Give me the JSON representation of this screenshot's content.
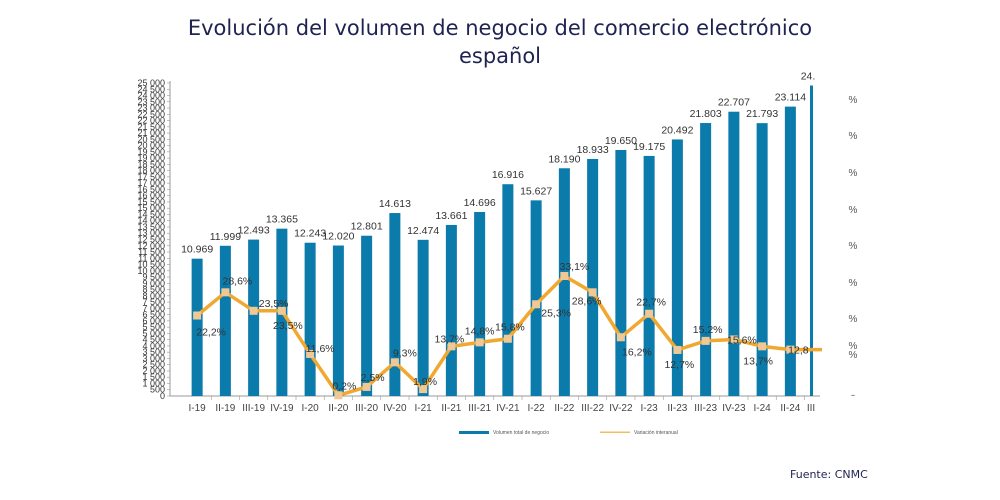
{
  "page": {
    "title_line1": "Evolución del volumen de negocio del comercio electrónico",
    "title_line2": "español",
    "source": "Fuente: CNMC"
  },
  "chart_data": {
    "type": "bar",
    "title": "Evolución del volumen de negocio del comercio electrónico español",
    "categories": [
      "I-19",
      "II-19",
      "III-19",
      "IV-19",
      "I-20",
      "II-20",
      "III-20",
      "IV-20",
      "I-21",
      "II-21",
      "III-21",
      "IV-21",
      "I-22",
      "II-22",
      "III-22",
      "IV-22",
      "I-23",
      "II-23",
      "III-23",
      "IV-23",
      "I-24",
      "II-24",
      "III"
    ],
    "series": [
      {
        "name": "Volumen total de negocio",
        "type": "bar",
        "color": "#0b7bab",
        "values": [
          10969,
          11999,
          12493,
          13365,
          12243,
          12020,
          12801,
          14613,
          12474,
          13661,
          14696,
          16916,
          15627,
          18190,
          18933,
          19650,
          19175,
          20492,
          21803,
          22707,
          21793,
          23114,
          24800
        ],
        "labels": [
          "10.969",
          "11.999",
          "12.493",
          "13.365",
          "12.243",
          "12.020",
          "12.801",
          "14.613",
          "12.474",
          "13.661",
          "14.696",
          "16.916",
          "15.627",
          "18.190",
          "18.933",
          "19.650",
          "19.175",
          "20.492",
          "21.803",
          "22.707",
          "21.793",
          "23.114",
          "24."
        ]
      },
      {
        "name": "Variación interanual",
        "type": "line",
        "color": "#f0a830",
        "values": [
          22.2,
          28.6,
          23.5,
          23.5,
          11.6,
          0.2,
          2.5,
          9.3,
          1.9,
          13.7,
          14.8,
          15.8,
          25.3,
          33.1,
          28.6,
          16.2,
          22.7,
          12.7,
          15.2,
          15.6,
          13.7,
          12.8,
          12.8
        ],
        "labels": [
          "22,2%",
          "28,6%",
          "23,5%",
          "23,5%",
          "11,6%",
          "0,2%",
          "2,5%",
          "9,3%",
          "1,9%",
          "13,7%",
          "14,8%",
          "15,8%",
          "25,3%",
          "33,1%",
          "28,6%",
          "16,2%",
          "22,7%",
          "12,7%",
          "15,2%",
          "15,6%",
          "13,7%",
          "12,8",
          ""
        ]
      }
    ],
    "yticks": [
      "0",
      "500",
      "1 000",
      "1 500",
      "2 000",
      "2 500",
      "3 000",
      "3 500",
      "4 000",
      "4 500",
      "5 000",
      "5 500",
      "6 000",
      "6 500",
      "7 000",
      "7 500",
      "8 000",
      "8 500",
      "9 000",
      "9 500",
      "10 000",
      "10 500",
      "11 000",
      "11 500",
      "12 000",
      "12 500",
      "13 000",
      "13 500",
      "14 000",
      "14 500",
      "15 000",
      "15 500",
      "16 000",
      "16 500",
      "17 000",
      "17 500",
      "18 000",
      "18 500",
      "19 000",
      "19 500",
      "20 000",
      "20 500",
      "21 000",
      "21 500",
      "22 000",
      "22 500",
      "23 000",
      "23 500",
      "24 000",
      "24 500",
      "25 000"
    ],
    "ylim": [
      0,
      25000
    ],
    "y2lim": [
      0,
      33.1
    ],
    "y2ticks": [
      "%",
      "%",
      "%",
      "%",
      "%",
      "%",
      "%",
      "%",
      "%",
      "%"
    ],
    "xlabel": "",
    "ylabel": "",
    "legend": {
      "position": "bottom",
      "items": [
        "Volumen total de negocio",
        "Variación interanual"
      ]
    },
    "grid": false
  }
}
